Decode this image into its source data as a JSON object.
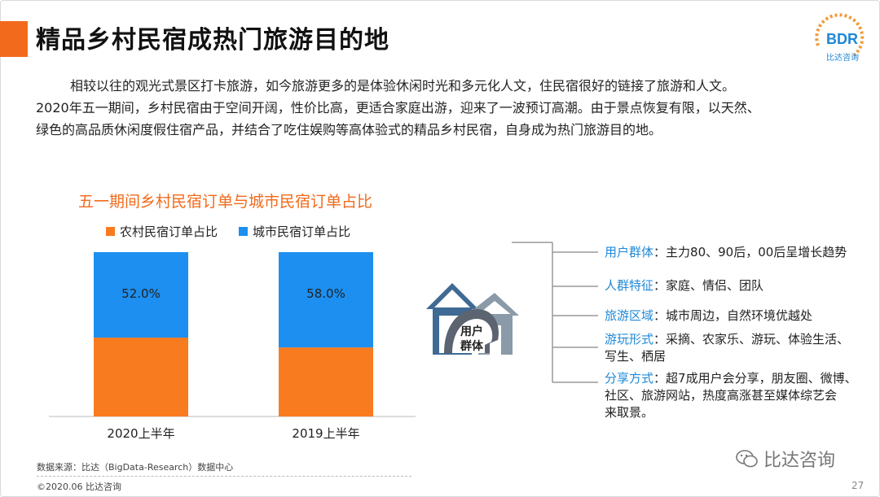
{
  "header": {
    "title": "精品乡村民宿成热门旅游目的地",
    "logo_text": "BDR",
    "logo_sub": "比达咨询"
  },
  "intro": {
    "line1": "相较以往的观光式景区打卡旅游，如今旅游更多的是体验休闲时光和多元化人文，住民宿很好的链接了旅游和人文。",
    "line2": "2020年五一期间，乡村民宿由于空间开阔，性价比高，更适合家庭出游，迎来了一波预订高潮。由于景点恢复有限，以天然、",
    "line3": "绿色的高品质休闲度假住宿产品，并结合了吃住娱购等高体验式的精品乡村民宿，自身成为热门旅游目的地。"
  },
  "chart_data": {
    "type": "bar",
    "stacked": true,
    "title": "五一期间乡村民宿订单与城市民宿订单占比",
    "categories": [
      "2020上半年",
      "2019上半年"
    ],
    "series": [
      {
        "name": "农村民宿订单占比",
        "values": [
          48.0,
          42.0
        ],
        "color": "#f97b20"
      },
      {
        "name": "城市民宿订单占比",
        "values": [
          52.0,
          58.0
        ],
        "color": "#1c8ff0"
      }
    ],
    "labels": [
      "52.0%",
      "58.0%"
    ],
    "ylim": [
      0,
      100
    ],
    "legend": "top"
  },
  "icon": {
    "name": "house-user-icon",
    "label_line1": "用户",
    "label_line2": "群体"
  },
  "features": [
    {
      "key": "用户群体",
      "sep": "：",
      "lines": [
        "主力80、90后，00后呈增长趋势"
      ]
    },
    {
      "key": "人群特征",
      "sep": "：",
      "lines": [
        "家庭、情侣、团队"
      ]
    },
    {
      "key": "旅游区域",
      "sep": "：",
      "lines": [
        "城市周边，自然环境优越处"
      ]
    },
    {
      "key": "游玩形式",
      "sep": "：",
      "lines": [
        "采摘、农家乐、游玩、体验生活、",
        "写生、栖居"
      ]
    },
    {
      "key": "分享方式",
      "sep": "：",
      "lines": [
        "超7成用户会分享，朋友圈、微博、",
        "社区、旅游网站，热度高涨甚至媒体综艺会",
        "来取景。"
      ]
    }
  ],
  "footer": {
    "source": "数据来源：比达（BigData-Research）数据中心",
    "copyright": "©2020.06  比达咨询",
    "page": "27",
    "watermark": "比达咨询"
  }
}
